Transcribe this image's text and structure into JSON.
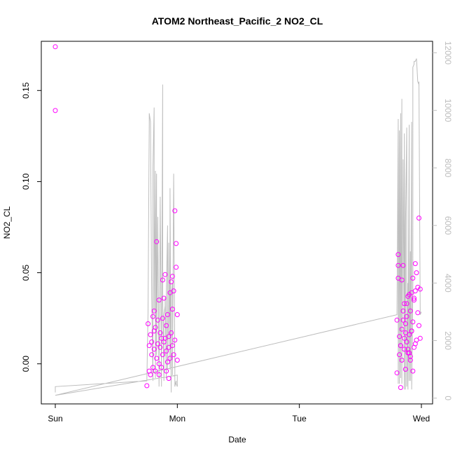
{
  "chart_data": {
    "type": "scatter",
    "title": "ATOM2 Northeast_Pacific_2 NO2_CL",
    "xlabel": "Date",
    "ylabel": "NO2_CL",
    "x_ticks": [
      "Sun",
      "Mon",
      "Tue",
      "Wed"
    ],
    "xlim": [
      0,
      3.15
    ],
    "ylim": [
      -0.022,
      0.177
    ],
    "y_ticks": [
      0.0,
      0.05,
      0.1,
      0.15
    ],
    "y_tick_labels": [
      "0.00",
      "0.05",
      "0.10",
      "0.15"
    ],
    "y2lim": [
      -200,
      12400
    ],
    "y2_ticks": [
      0,
      2000,
      4000,
      6000,
      8000,
      10000,
      12000
    ],
    "y2_tick_labels": [
      "0",
      "2000",
      "4000",
      "6000",
      "8000",
      "10000",
      "12000"
    ],
    "colors": {
      "points": "#ff00ff",
      "line": "#bdbdbd",
      "frame": "#000000"
    },
    "series": [
      {
        "kind": "points",
        "x": [
          0.0,
          0.0,
          0.75,
          0.76,
          0.77,
          0.77,
          0.78,
          0.78,
          0.79,
          0.79,
          0.8,
          0.8,
          0.81,
          0.81,
          0.82,
          0.82,
          0.83,
          0.83,
          0.84,
          0.84,
          0.85,
          0.85,
          0.86,
          0.86,
          0.87,
          0.87,
          0.88,
          0.88,
          0.89,
          0.89,
          0.9,
          0.9,
          0.91,
          0.91,
          0.92,
          0.92,
          0.93,
          0.93,
          0.94,
          0.94,
          0.95,
          0.95,
          0.96,
          0.96,
          0.97,
          0.97,
          0.98,
          0.98,
          0.99,
          0.99,
          1.0,
          1.0,
          0.88,
          0.93,
          0.96,
          0.81,
          0.85,
          0.91,
          2.8,
          2.8,
          2.81,
          2.81,
          2.82,
          2.82,
          2.83,
          2.83,
          2.84,
          2.84,
          2.85,
          2.85,
          2.86,
          2.86,
          2.87,
          2.87,
          2.88,
          2.88,
          2.89,
          2.89,
          2.9,
          2.9,
          2.91,
          2.91,
          2.92,
          2.92,
          2.93,
          2.93,
          2.94,
          2.94,
          2.95,
          2.95,
          2.96,
          2.96,
          2.97,
          2.97,
          2.98,
          2.98,
          2.99,
          2.99,
          2.81,
          2.83,
          2.85,
          2.87,
          2.89,
          2.91,
          2.93,
          2.95,
          2.84,
          2.86,
          2.88,
          2.9,
          2.92,
          2.94
        ],
        "y": [
          0.174,
          0.139,
          -0.012,
          0.022,
          -0.004,
          0.01,
          0.016,
          -0.006,
          0.005,
          0.012,
          0.026,
          -0.002,
          0.008,
          0.029,
          0.02,
          -0.004,
          0.067,
          0.003,
          0.011,
          0.024,
          0.035,
          -0.006,
          0.009,
          0.017,
          -0.002,
          0.014,
          0.046,
          0.005,
          0.036,
          0.012,
          0.049,
          0.014,
          0.021,
          -0.004,
          0.027,
          0.001,
          0.015,
          0.009,
          0.039,
          0.003,
          0.017,
          0.045,
          0.01,
          0.048,
          0.005,
          0.04,
          0.013,
          0.084,
          0.066,
          0.053,
          0.027,
          0.002,
          0.025,
          -0.008,
          0.03,
          0.018,
          0.0,
          0.007,
          -0.005,
          0.024,
          0.06,
          0.054,
          0.005,
          0.015,
          -0.013,
          0.01,
          0.046,
          0.002,
          0.029,
          0.054,
          0.008,
          0.014,
          -0.003,
          0.022,
          0.012,
          0.033,
          0.037,
          0.006,
          0.038,
          0.016,
          0.029,
          0.002,
          0.039,
          0.018,
          0.023,
          0.047,
          0.035,
          0.009,
          0.055,
          0.04,
          0.05,
          0.013,
          0.028,
          0.042,
          0.021,
          0.08,
          0.041,
          0.014,
          0.047,
          0.01,
          0.024,
          0.017,
          0.008,
          0.004,
          -0.004,
          0.011,
          0.019,
          0.033,
          0.026,
          0.006,
          0.018,
          0.036
        ]
      },
      {
        "kind": "line",
        "axis": "right",
        "x": [
          0.0,
          0.0,
          0.75,
          0.76,
          0.77,
          0.77,
          0.78,
          0.79,
          0.8,
          0.8,
          0.81,
          0.81,
          0.82,
          0.82,
          0.83,
          0.83,
          0.84,
          0.85,
          0.86,
          0.87,
          0.87,
          0.88,
          0.88,
          0.89,
          0.89,
          0.9,
          0.9,
          0.91,
          0.91,
          0.92,
          0.92,
          0.93,
          0.93,
          0.94,
          0.94,
          0.95,
          0.95,
          0.96,
          0.96,
          0.97,
          0.98,
          0.98,
          0.99,
          0.99,
          1.0,
          1.0,
          1.0,
          0.0,
          2.8,
          2.81,
          2.81,
          2.82,
          2.82,
          2.83,
          2.83,
          2.84,
          2.84,
          2.85,
          2.86,
          2.86,
          2.87,
          2.87,
          2.88,
          2.88,
          2.89,
          2.89,
          2.9,
          2.9,
          2.91,
          2.91,
          2.92,
          2.92,
          2.93,
          2.93,
          2.94,
          2.94,
          2.95,
          2.96,
          2.97,
          2.98,
          2.98,
          2.99,
          2.99,
          3.0
        ],
        "y": [
          200,
          400,
          600,
          3000,
          9500,
          9900,
          9600,
          3500,
          600,
          8000,
          10100,
          3000,
          7900,
          700,
          7800,
          1500,
          6300,
          400,
          7000,
          400,
          900,
          10900,
          3500,
          600,
          2900,
          3200,
          3500,
          700,
          3600,
          6000,
          1000,
          3300,
          5400,
          1000,
          7300,
          200,
          3500,
          4000,
          800,
          7800,
          1000,
          400,
          600,
          500,
          400,
          400,
          800,
          100,
          2900,
          9700,
          500,
          9300,
          500,
          9900,
          700,
          10400,
          500,
          8300,
          300,
          9200,
          300,
          6000,
          9400,
          400,
          4000,
          300,
          9500,
          600,
          5100,
          600,
          9600,
          300,
          4000,
          11500,
          11600,
          11700,
          11700,
          11800,
          11000,
          10900,
          11000,
          3000,
          2900,
          3000
        ]
      }
    ]
  }
}
